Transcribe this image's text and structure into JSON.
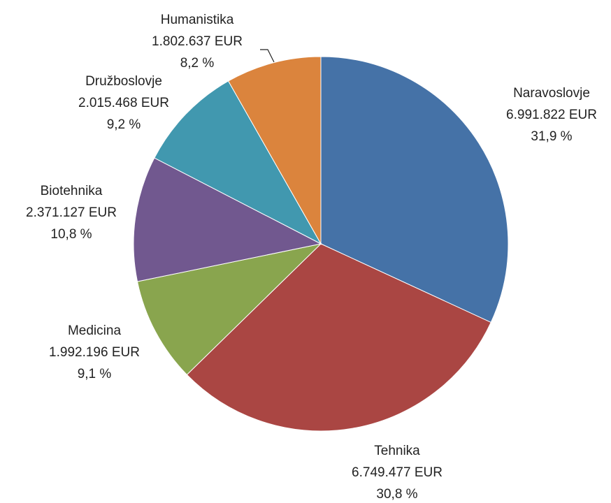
{
  "chart_data": {
    "type": "pie",
    "categories": [
      "Naravoslovje",
      "Tehnika",
      "Medicina",
      "Biotehnika",
      "Družboslovje",
      "Humanistika"
    ],
    "values": [
      6991822,
      6749477,
      1992196,
      2371127,
      2015468,
      1802637
    ],
    "value_labels": [
      "6.991.822 EUR",
      "6.749.477 EUR",
      "1.992.196 EUR",
      "2.371.127 EUR",
      "2.015.468 EUR",
      "1.802.637 EUR"
    ],
    "percent_labels": [
      "31,9 %",
      "30,8 %",
      "9,1 %",
      "10,8 %",
      "9,2 %",
      "8,2 %"
    ],
    "colors": [
      "#4572a7",
      "#aa4643",
      "#89a54e",
      "#71588f",
      "#4198af",
      "#db843d"
    ]
  }
}
